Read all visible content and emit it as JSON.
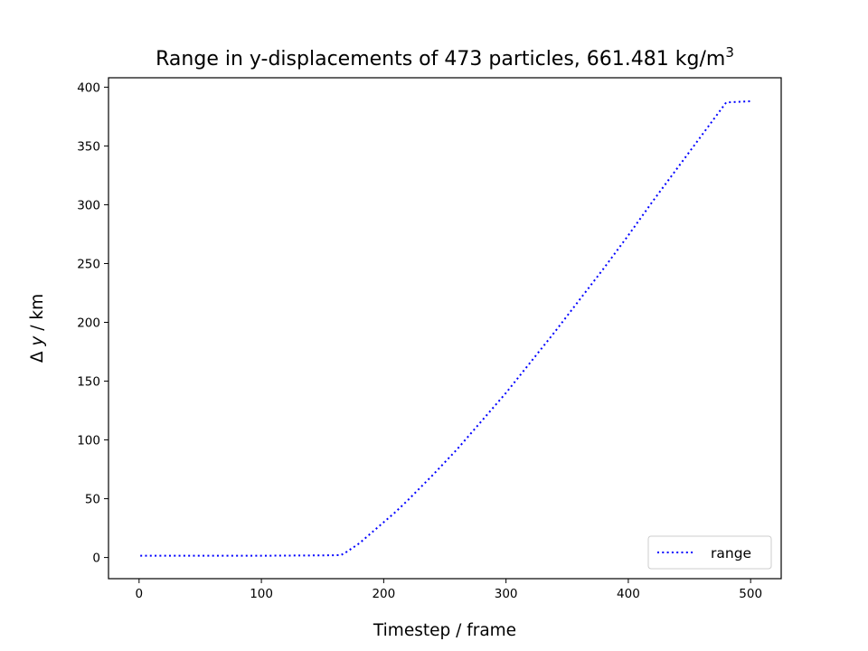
{
  "chart_data": {
    "type": "line",
    "title": "Range in y-displacements of 473 particles, 661.481 kg/m",
    "title_superscript": "3",
    "xlabel": "Timestep / frame",
    "ylabel_prefix": "Δ ",
    "ylabel_var": "y",
    "ylabel_suffix": " / km",
    "xlim": [
      -25,
      525
    ],
    "ylim": [
      -18,
      408
    ],
    "xticks": [
      0,
      100,
      200,
      300,
      400,
      500
    ],
    "yticks": [
      0,
      50,
      100,
      150,
      200,
      250,
      300,
      350,
      400
    ],
    "grid": false,
    "legend_position": "lower-right",
    "series": [
      {
        "name": "range",
        "color": "#0000ff",
        "linestyle": "dotted",
        "x": [
          1,
          50,
          100,
          150,
          165,
          170,
          180,
          190,
          200,
          210,
          220,
          240,
          260,
          280,
          300,
          320,
          340,
          360,
          380,
          400,
          420,
          440,
          460,
          480,
          500
        ],
        "y": [
          1.5,
          1.5,
          1.5,
          1.8,
          2,
          5,
          12,
          21,
          30,
          39,
          49,
          70,
          92,
          116,
          140,
          166,
          192,
          219,
          246,
          274,
          303,
          331,
          359,
          387,
          388
        ]
      }
    ]
  }
}
